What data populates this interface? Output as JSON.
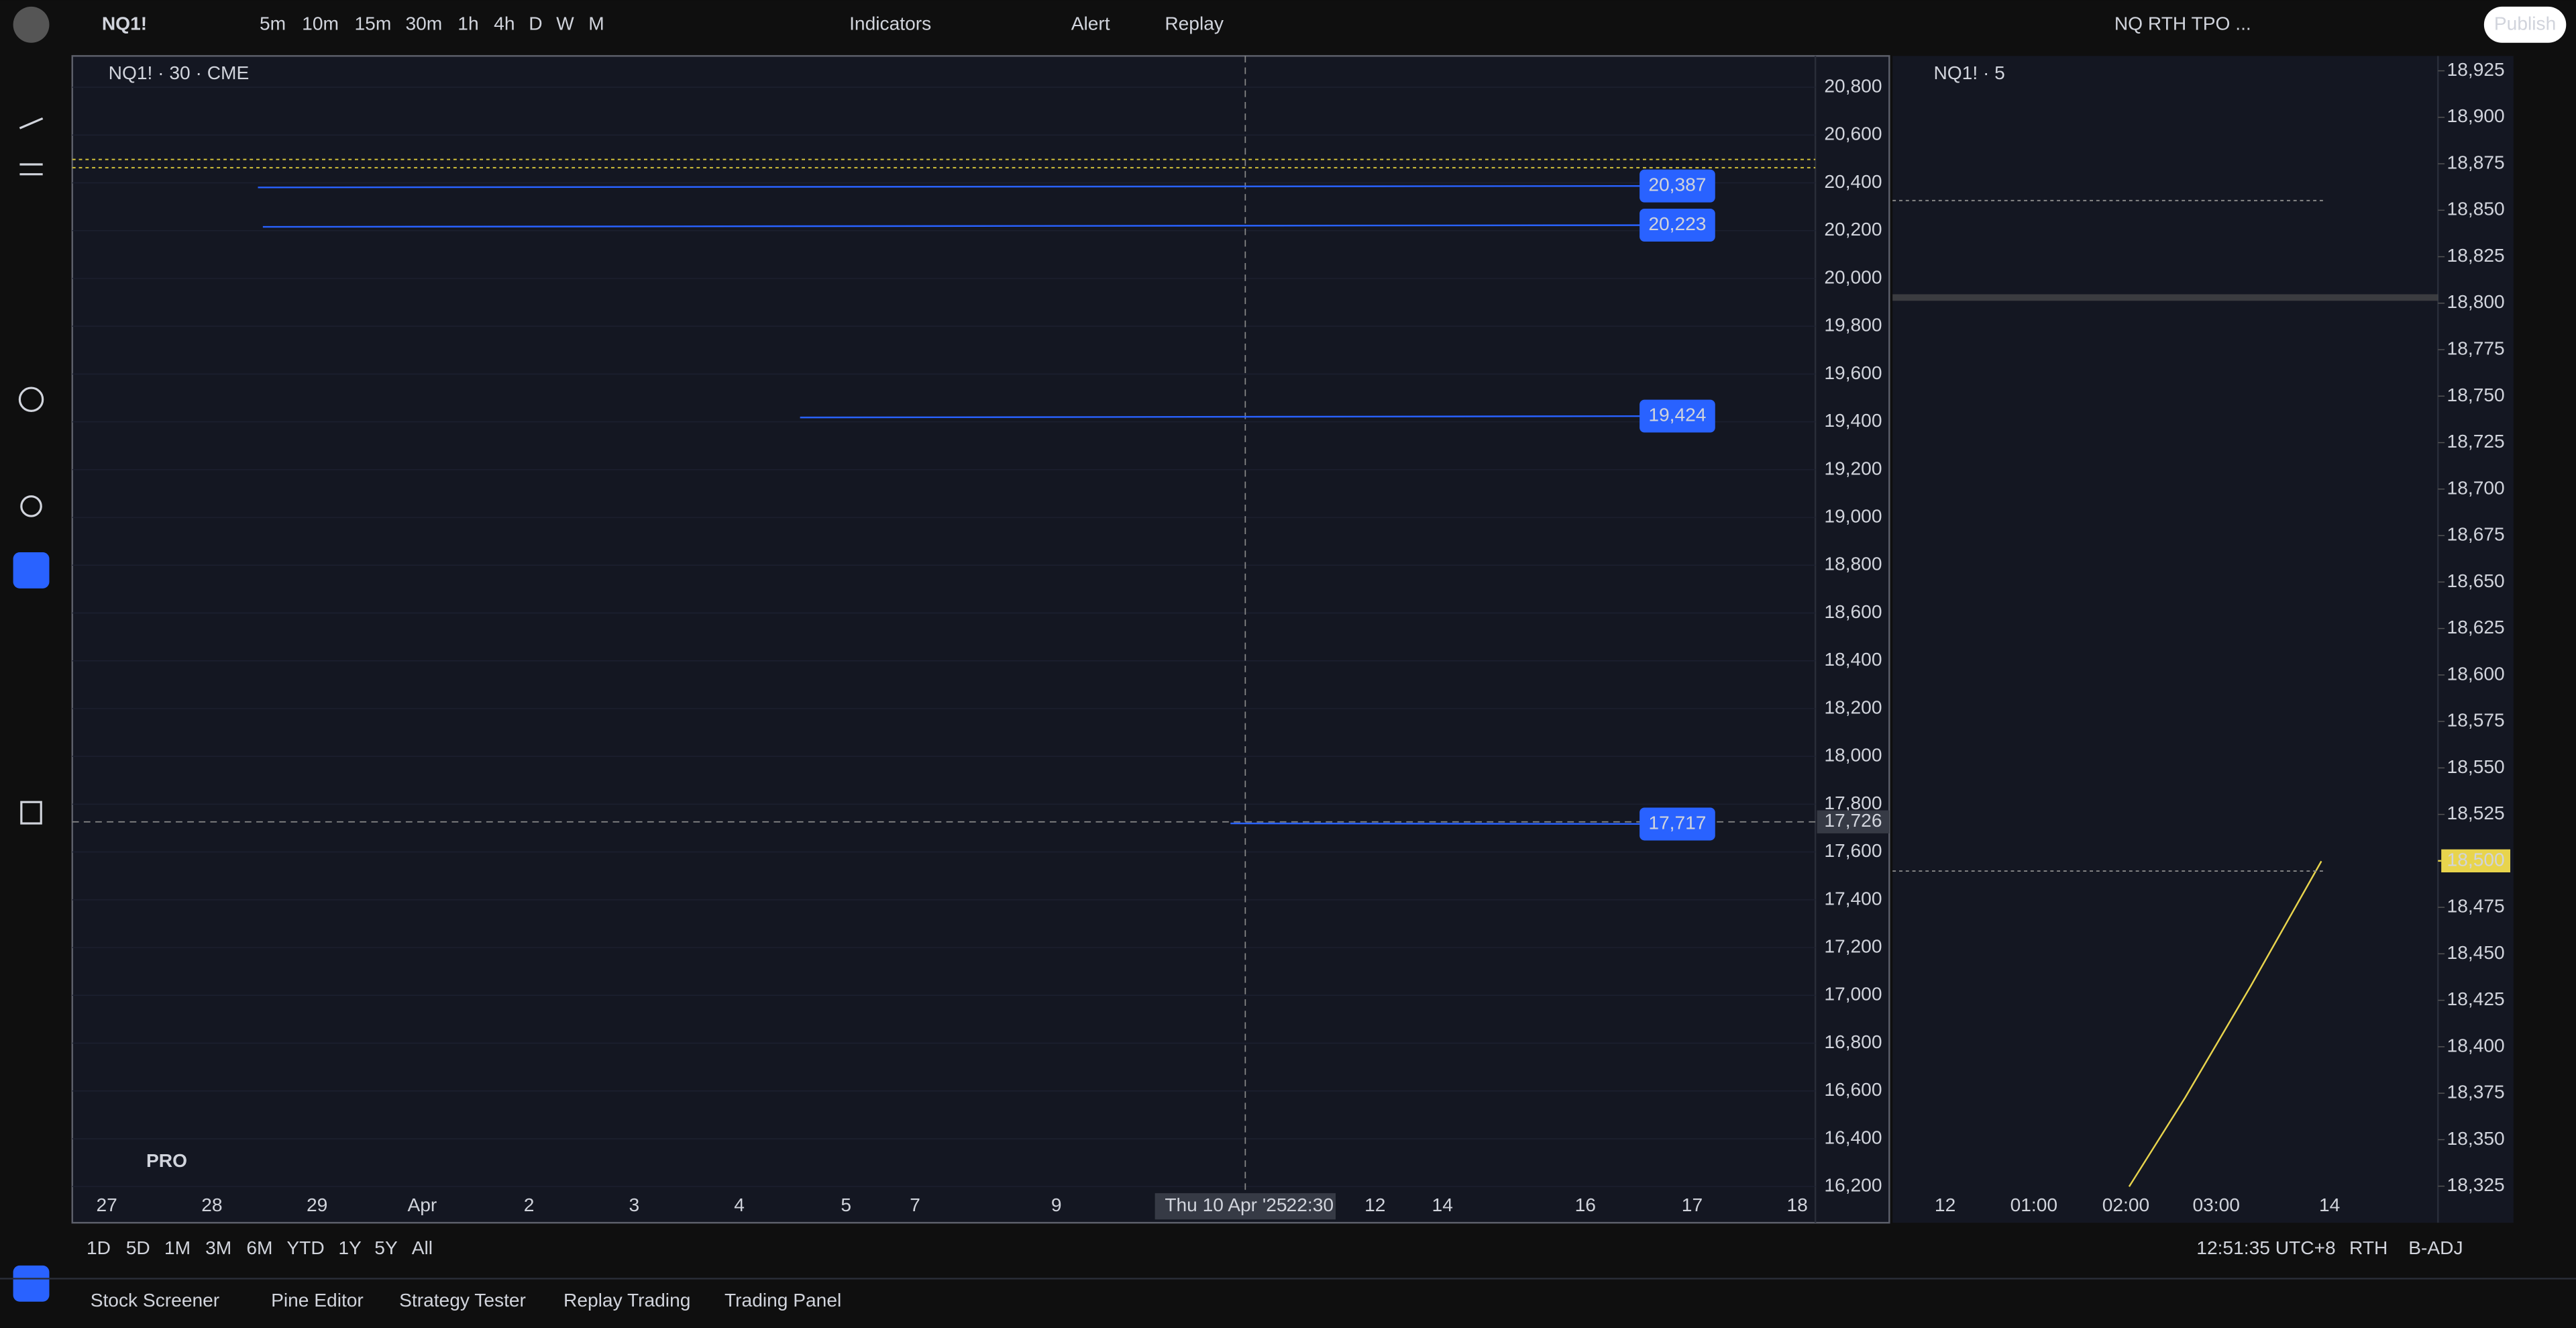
{
  "toolbar": {
    "symbol": "NQ1!",
    "intervals": [
      "5m",
      "10m",
      "15m",
      "30m",
      "1h",
      "4h",
      "D",
      "W",
      "M"
    ],
    "active_interval": "30m",
    "indicators": "Indicators",
    "alert": "Alert",
    "replay": "Replay",
    "layout_name": "NQ RTH TPO ...",
    "publish": "Publish"
  },
  "main_chart": {
    "title": "NQ1! · 30 · CME",
    "badge": "PRO",
    "ylim": [
      16186,
      20931
    ],
    "yticks": [
      {
        "value": 20800,
        "label": "20,800"
      },
      {
        "value": 20600,
        "label": "20,600"
      },
      {
        "value": 20400,
        "label": "20,400"
      },
      {
        "value": 20200,
        "label": "20,200"
      },
      {
        "value": 20000,
        "label": "20,000"
      },
      {
        "value": 19800,
        "label": "19,800"
      },
      {
        "value": 19600,
        "label": "19,600"
      },
      {
        "value": 19400,
        "label": "19,400"
      },
      {
        "value": 19200,
        "label": "19,200"
      },
      {
        "value": 19000,
        "label": "19,000"
      },
      {
        "value": 18800,
        "label": "18,800"
      },
      {
        "value": 18600,
        "label": "18,600"
      },
      {
        "value": 18400,
        "label": "18,400"
      },
      {
        "value": 18200,
        "label": "18,200"
      },
      {
        "value": 18000,
        "label": "18,000"
      },
      {
        "value": 17800,
        "label": "17,800"
      },
      {
        "value": 17600,
        "label": "17,600"
      },
      {
        "value": 17400,
        "label": "17,400"
      },
      {
        "value": 17200,
        "label": "17,200"
      },
      {
        "value": 17000,
        "label": "17,000"
      },
      {
        "value": 16800,
        "label": "16,800"
      },
      {
        "value": 16600,
        "label": "16,600"
      },
      {
        "value": 16400,
        "label": "16,400"
      },
      {
        "value": 16200,
        "label": "16,200"
      }
    ],
    "x_labels": [
      "27",
      "28",
      "29",
      "Apr",
      "2",
      "3",
      "4",
      "5",
      "7",
      "9",
      "12",
      "14",
      "16",
      "17",
      "18"
    ],
    "crosshair_date": "Thu 10 Apr '25",
    "crosshair_clock": "22:30",
    "crosshair_price": {
      "value": 17726,
      "label": "17,726"
    },
    "price_labels": [
      {
        "value": 20387,
        "label": "20,387"
      },
      {
        "value": 20223,
        "label": "20,223"
      },
      {
        "value": 19424,
        "label": "19,424"
      },
      {
        "value": 17717,
        "label": "17,717"
      }
    ]
  },
  "side_chart": {
    "title": "NQ1! · 5",
    "ylim": [
      18323,
      18933
    ],
    "yticks": [
      {
        "value": 18925,
        "label": "18,925"
      },
      {
        "value": 18900,
        "label": "18,900"
      },
      {
        "value": 18875,
        "label": "18,875"
      },
      {
        "value": 18850,
        "label": "18,850"
      },
      {
        "value": 18825,
        "label": "18,825"
      },
      {
        "value": 18800,
        "label": "18,800"
      },
      {
        "value": 18775,
        "label": "18,775"
      },
      {
        "value": 18750,
        "label": "18,750"
      },
      {
        "value": 18725,
        "label": "18,725"
      },
      {
        "value": 18700,
        "label": "18,700"
      },
      {
        "value": 18675,
        "label": "18,675"
      },
      {
        "value": 18650,
        "label": "18,650"
      },
      {
        "value": 18625,
        "label": "18,625"
      },
      {
        "value": 18600,
        "label": "18,600"
      },
      {
        "value": 18575,
        "label": "18,575"
      },
      {
        "value": 18550,
        "label": "18,550"
      },
      {
        "value": 18525,
        "label": "18,525"
      },
      {
        "value": 18500,
        "label": "18,500"
      },
      {
        "value": 18475,
        "label": "18,475"
      },
      {
        "value": 18450,
        "label": "18,450"
      },
      {
        "value": 18425,
        "label": "18,425"
      },
      {
        "value": 18400,
        "label": "18,400"
      },
      {
        "value": 18375,
        "label": "18,375"
      },
      {
        "value": 18350,
        "label": "18,350"
      },
      {
        "value": 18325,
        "label": "18,325"
      }
    ],
    "x_labels": [
      "12",
      "01:00",
      "02:00",
      "03:00",
      "14"
    ],
    "current_price": {
      "value": 18500,
      "label": "18,500"
    }
  },
  "ranges": [
    "1D",
    "5D",
    "1M",
    "3M",
    "6M",
    "YTD",
    "1Y",
    "5Y",
    "All"
  ],
  "status": {
    "time": "12:51:35 UTC+8",
    "session": "RTH",
    "adjustment": "B-ADJ"
  },
  "tabs": [
    "Stock Screener",
    "Pine Editor",
    "Strategy Tester",
    "Replay Trading",
    "Trading Panel"
  ]
}
